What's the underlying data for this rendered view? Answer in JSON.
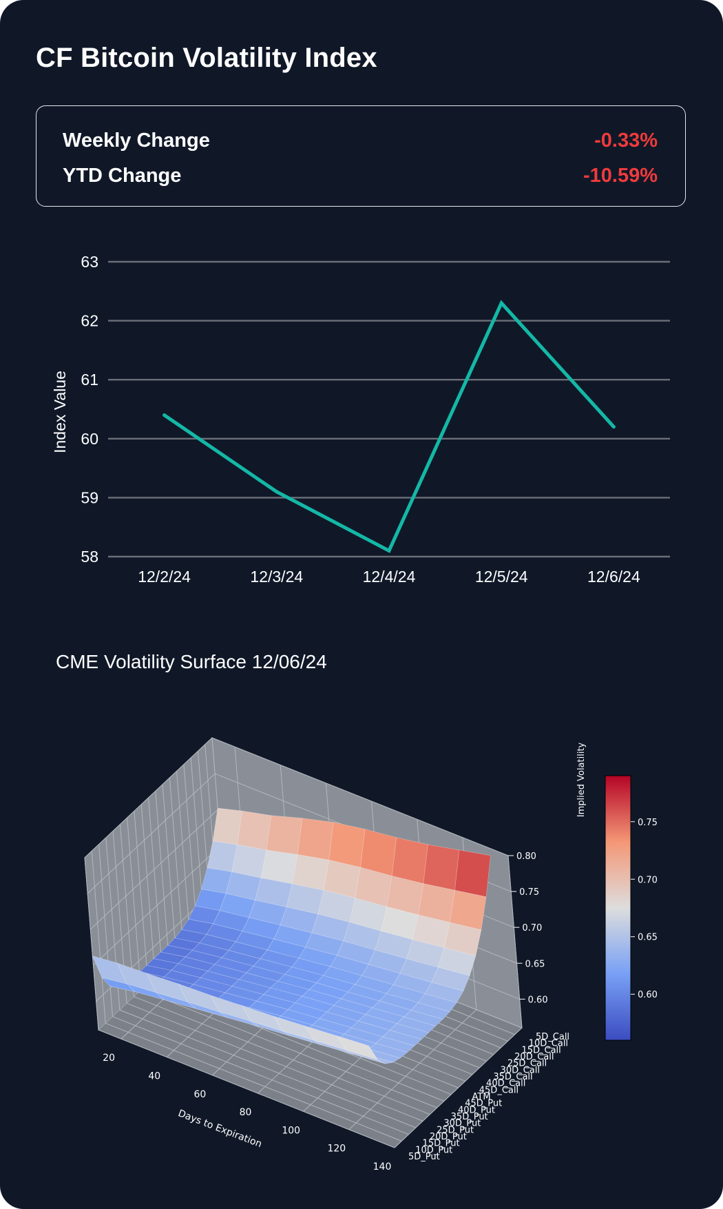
{
  "page": {
    "title": "CF Bitcoin Volatility Index"
  },
  "stats": {
    "weekly_label": "Weekly Change",
    "weekly_value": "-0.33%",
    "ytd_label": "YTD Change",
    "ytd_value": "-10.59%",
    "negative_color": "#ef3b3b"
  },
  "chart_data": [
    {
      "type": "line",
      "categories": [
        "12/2/24",
        "12/3/24",
        "12/4/24",
        "12/5/24",
        "12/6/24"
      ],
      "values": [
        60.4,
        59.1,
        58.1,
        62.3,
        60.2
      ],
      "title": "",
      "xlabel": "",
      "ylabel": "Index Value",
      "ylim": [
        58,
        63
      ],
      "yticks": [
        58,
        59,
        60,
        61,
        62,
        63
      ],
      "grid": true,
      "line_color": "#14b8a6"
    },
    {
      "type": "surface",
      "title": "CME Volatility Surface 12/06/24",
      "xlabel": "Days to Expiration",
      "xticks": [
        20,
        40,
        60,
        80,
        100,
        120,
        140
      ],
      "xrange": [
        10,
        140
      ],
      "y_categories": [
        "5D_Put",
        "10D_Put",
        "15D_Put",
        "20D_Put",
        "25D_Put",
        "30D_Put",
        "35D_Put",
        "40D_Put",
        "45D_Put",
        "ATM",
        "45D_Call",
        "40D_Call",
        "35D_Call",
        "30D_Call",
        "25D_Call",
        "20D_Call",
        "15D_Call",
        "10D_Call",
        "5D_Call"
      ],
      "zlabel": "Implied Volatility",
      "zticks": [
        "0.60",
        "0.65",
        "0.70",
        "0.75",
        "0.80"
      ],
      "zrange": [
        0.56,
        0.8
      ],
      "colorbar_ticks": [
        "0.60",
        "0.65",
        "0.70",
        "0.75"
      ],
      "colorbar_range": [
        0.56,
        0.79
      ],
      "days": [
        10,
        21,
        34,
        48,
        62,
        76,
        90,
        104,
        118,
        132
      ],
      "front_put_iv": [
        0.663,
        0.667,
        0.669,
        0.672,
        0.674,
        0.677,
        0.68,
        0.684,
        0.688,
        0.692
      ],
      "front_call_iv": [
        0.702,
        0.712,
        0.722,
        0.736,
        0.748,
        0.756,
        0.762,
        0.77,
        0.78,
        0.79
      ],
      "atm_iv": [
        0.585,
        0.592,
        0.598,
        0.604,
        0.61,
        0.616,
        0.621,
        0.626,
        0.631,
        0.636
      ],
      "colormap": "coolwarm"
    }
  ]
}
